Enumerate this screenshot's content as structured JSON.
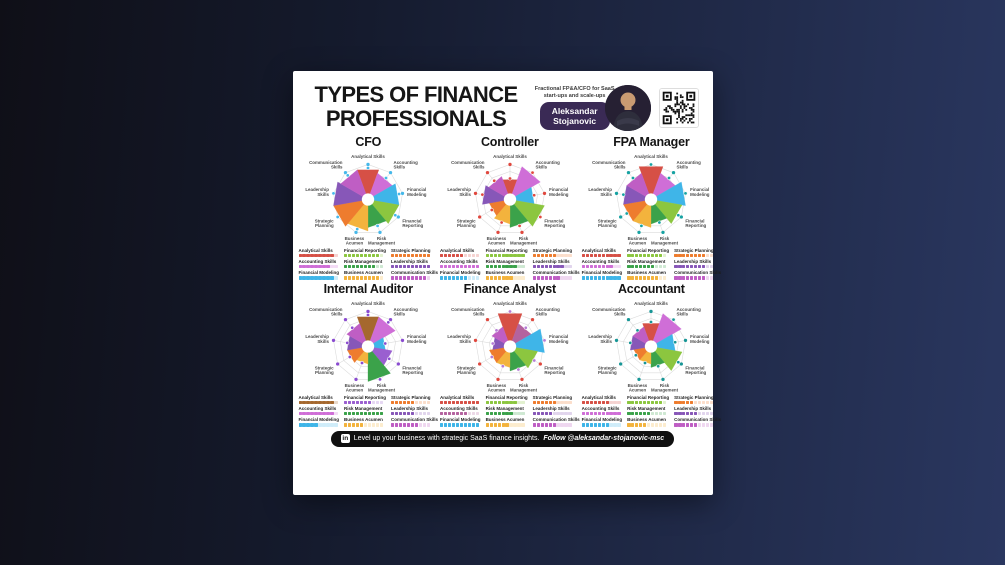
{
  "header": {
    "title_line1": "TYPES OF FINANCE",
    "title_line2": "PROFESSIONALS",
    "tagline_line1": "Fractional FP&A/CFO for SaaS",
    "tagline_line2": "start-ups and scale-ups",
    "name_line1": "Aleksandar",
    "name_line2": "Stojanovic",
    "badge_color": "#3a2a55"
  },
  "footer": {
    "message": "Level up your business with strategic SaaS finance insights.",
    "follow": "Follow @aleksandar-stojanovic-msc",
    "linkedin_icon_glyph": "in"
  },
  "skills": [
    "Analytical Skills",
    "Accounting Skills",
    "Financial Modeling",
    "Financial Reporting",
    "Risk Management",
    "Business Acumen",
    "Strategic Planning",
    "Leadership Skills",
    "Communication Skills"
  ],
  "skill_colors": [
    "#d65046",
    "#cf6ed7",
    "#3fb5e8",
    "#8cc63f",
    "#3ba24a",
    "#f3b33d",
    "#ee7c2e",
    "#8757b8",
    "#bf5ec4"
  ],
  "legend_row_order": [
    [
      0,
      3,
      6
    ],
    [
      1,
      4,
      7
    ],
    [
      2,
      5,
      8
    ]
  ],
  "chart_data": {
    "type": "radar",
    "subtype": "polar-area-rose",
    "max": 10,
    "grid": "spider-web, 5 rings, 9 spokes",
    "categories_key": "skills",
    "charts": [
      {
        "title": "CFO",
        "axis_dot_color": "#45b8ea",
        "data_dot_color": "#45b8ea",
        "values": [
          9,
          8,
          9,
          9,
          8,
          9,
          10,
          10,
          9
        ]
      },
      {
        "title": "Controller",
        "axis_dot_color": "#e0483e",
        "data_dot_color": "#e0483e",
        "values": [
          6,
          10,
          7,
          10,
          8,
          7,
          6,
          8,
          7
        ]
      },
      {
        "title": "FPA Manager",
        "axis_dot_color": "#16a2a2",
        "data_dot_color": "#16a2a2",
        "values": [
          10,
          8,
          10,
          9,
          7,
          8,
          8,
          8,
          8
        ]
      },
      {
        "title": "Internal Auditor",
        "axis_dot_color": "#8a4bd0",
        "data_dot_color": "#8a4bd0",
        "values": [
          9,
          9,
          5,
          7,
          10,
          5,
          6,
          6,
          7
        ],
        "color_overrides": {
          "0": "#a5682e",
          "3": "#9a5fd0"
        }
      },
      {
        "title": "Finance Analyst",
        "axis_dot_color": "#e0483e",
        "data_dot_color": "#b57bd5",
        "values": [
          10,
          7,
          10,
          8,
          7,
          6,
          6,
          5,
          6
        ],
        "color_overrides": {
          "1": "#b4639f"
        }
      },
      {
        "title": "Accountant",
        "axis_dot_color": "#179696",
        "data_dot_color": "#179696",
        "values": [
          7,
          10,
          7,
          9,
          6,
          5,
          5,
          6,
          6
        ]
      }
    ]
  }
}
